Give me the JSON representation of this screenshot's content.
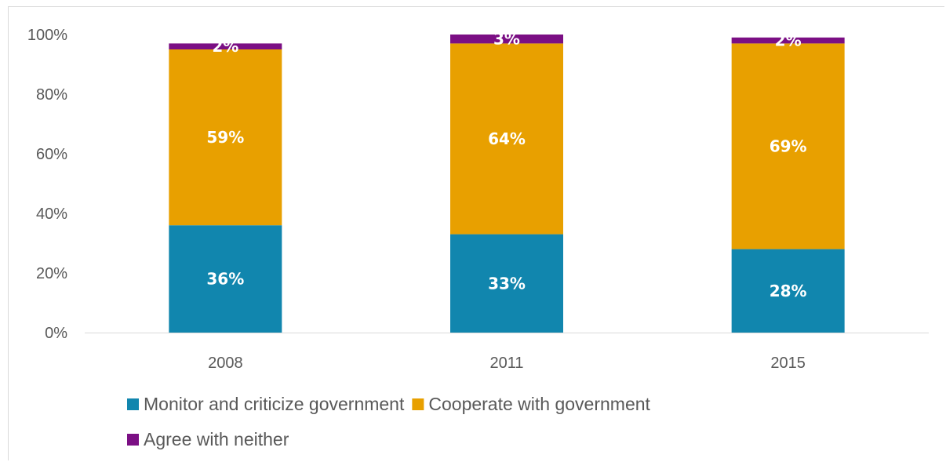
{
  "chart_data": {
    "type": "bar",
    "stacked": true,
    "categories": [
      "2008",
      "2011",
      "2015"
    ],
    "series": [
      {
        "name": "Monitor and criticize government",
        "values": [
          36,
          33,
          28
        ],
        "labels": [
          "36%",
          "33%",
          "28%"
        ],
        "color": "#1186ae"
      },
      {
        "name": "Cooperate with government",
        "values": [
          59,
          64,
          69
        ],
        "labels": [
          "59%",
          "64%",
          "69%"
        ],
        "color": "#e8a000"
      },
      {
        "name": "Agree with neither",
        "values": [
          2,
          3,
          2
        ],
        "labels": [
          "2%",
          "3%",
          "2%"
        ],
        "color": "#7b0f84"
      }
    ],
    "ylim": [
      0,
      100
    ],
    "yticks": [
      "0%",
      "20%",
      "40%",
      "60%",
      "80%",
      "100%"
    ],
    "title": "",
    "xlabel": "",
    "ylabel": "",
    "grid": false,
    "legend_position": "bottom"
  }
}
